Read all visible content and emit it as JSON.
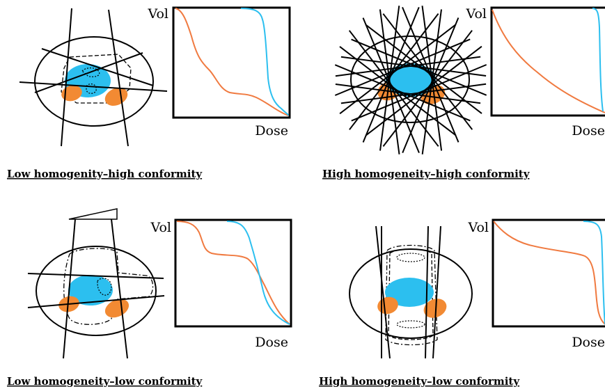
{
  "colors": {
    "target": "#2CBFEF",
    "organ_at_risk": "#F28A33",
    "dvh_target": "#2CBFEF",
    "dvh_oar": "#F07A40",
    "ink": "#000000"
  },
  "axis_labels": {
    "vol": "Vol",
    "dose": "Dose"
  },
  "panels": [
    {
      "caption": "Low homogenity–high conformity"
    },
    {
      "caption": "High homogeneity–high conformity"
    },
    {
      "caption": "Low homogeneity–low conformity "
    },
    {
      "caption": "High homogeneity–low conformity"
    }
  ]
}
